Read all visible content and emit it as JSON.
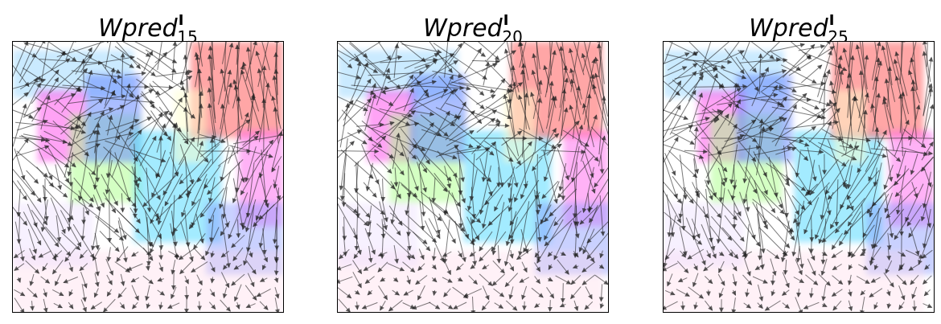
{
  "panels": [
    {
      "title_base": "Wpred",
      "title_sup": "I",
      "title_sub": "15",
      "seed": 15
    },
    {
      "title_base": "Wpred",
      "title_sup": "I",
      "title_sub": "20",
      "seed": 20
    },
    {
      "title_base": "Wpred",
      "title_sup": "I",
      "title_sub": "25",
      "seed": 25
    }
  ],
  "colors": {
    "arrow": "#222222",
    "frame": "#000000",
    "background": "#ffffff"
  }
}
